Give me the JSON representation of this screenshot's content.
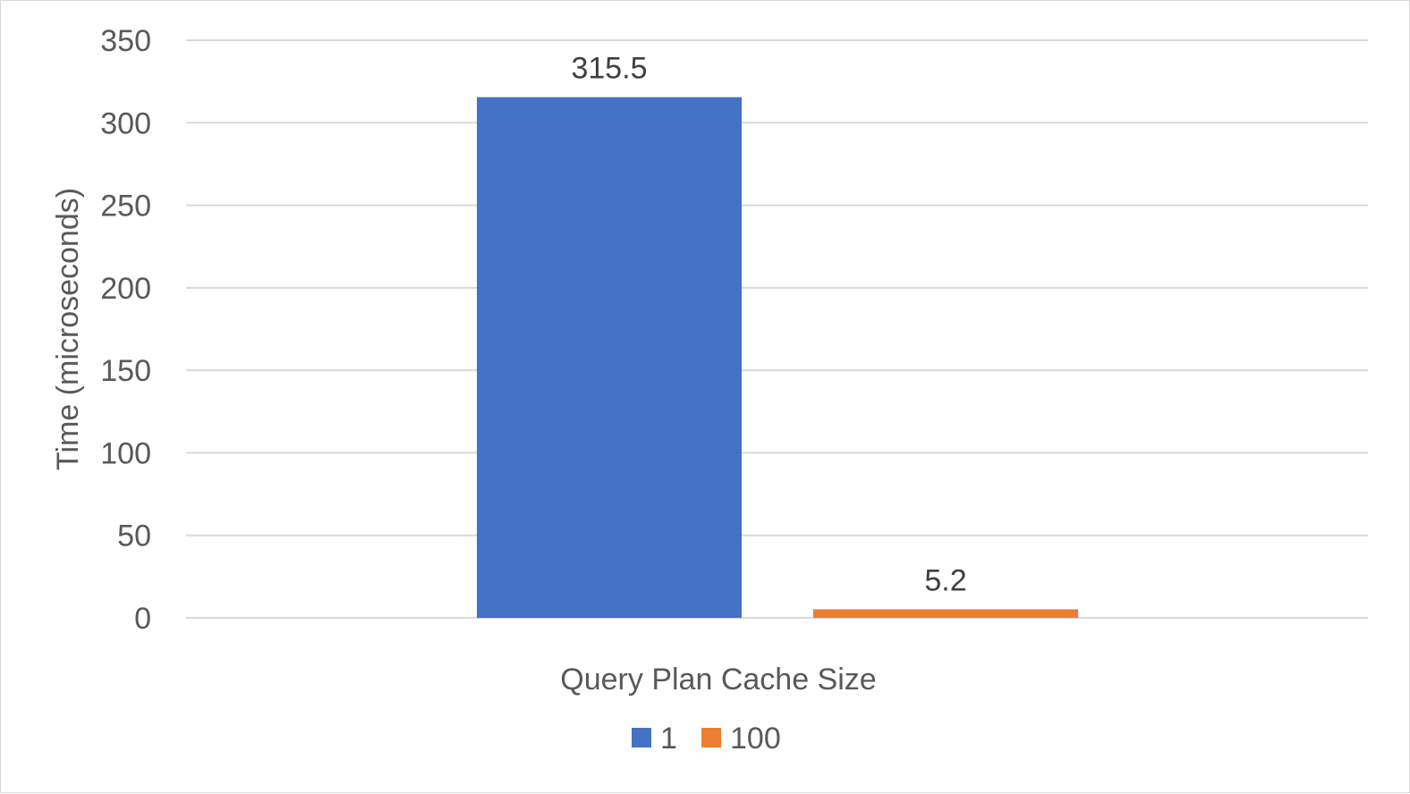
{
  "chart_data": {
    "type": "bar",
    "title": "",
    "xlabel": "Query Plan Cache Size",
    "ylabel": "Time (microseconds)",
    "ylim": [
      0,
      350
    ],
    "yticks": [
      0,
      50,
      100,
      150,
      200,
      250,
      300,
      350
    ],
    "grid": true,
    "legend_position": "bottom",
    "categories": [
      ""
    ],
    "series": [
      {
        "name": "1",
        "values": [
          315.5
        ],
        "color": "#4472C4",
        "data_label": "315.5"
      },
      {
        "name": "100",
        "values": [
          5.2
        ],
        "color": "#ED7D31",
        "data_label": "5.2"
      }
    ]
  }
}
